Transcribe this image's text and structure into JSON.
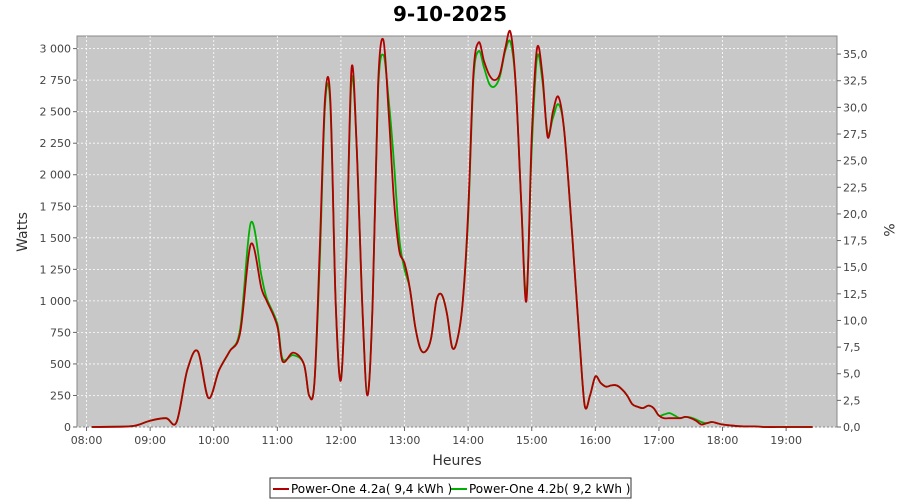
{
  "chart_data": {
    "type": "line",
    "title": "9-10-2025",
    "xlabel": "Heures",
    "ylabel": "Watts",
    "y2label": "%",
    "x_ticks": [
      "08:00",
      "09:00",
      "10:00",
      "11:00",
      "12:00",
      "13:00",
      "14:00",
      "15:00",
      "16:00",
      "17:00",
      "18:00",
      "19:00"
    ],
    "xlim_hours": [
      7.85,
      19.8
    ],
    "ylim": [
      0,
      3100
    ],
    "y_ticks": [
      "0",
      "250",
      "500",
      "750",
      "1 000",
      "1 250",
      "1 500",
      "1 750",
      "2 000",
      "2 250",
      "2 500",
      "2 750",
      "3 000"
    ],
    "y2lim": [
      0,
      36.7
    ],
    "y2_ticks": [
      "0,0",
      "2,5",
      "5,0",
      "7,5",
      "10,0",
      "12,5",
      "15,0",
      "17,5",
      "20,0",
      "22,5",
      "25,0",
      "27,5",
      "30,0",
      "32,5",
      "35,0"
    ],
    "grid": true,
    "background": "#c8c8c8",
    "legend_position": "bottom",
    "series": [
      {
        "name": "Power-One 4.2a( 9,4 kWh )",
        "color": "#b00000",
        "x": [
          "08:05",
          "08:40",
          "08:50",
          "09:00",
          "09:15",
          "09:25",
          "09:35",
          "09:45",
          "09:55",
          "10:05",
          "10:15",
          "10:25",
          "10:35",
          "10:45",
          "10:50",
          "11:00",
          "11:05",
          "11:15",
          "11:25",
          "11:30",
          "11:35",
          "11:40",
          "11:45",
          "11:50",
          "11:55",
          "12:00",
          "12:05",
          "12:10",
          "12:15",
          "12:20",
          "12:25",
          "12:30",
          "12:35",
          "12:40",
          "12:45",
          "12:50",
          "12:55",
          "13:00",
          "13:05",
          "13:10",
          "13:15",
          "13:20",
          "13:25",
          "13:30",
          "13:35",
          "13:40",
          "13:45",
          "13:50",
          "13:55",
          "14:00",
          "14:05",
          "14:10",
          "14:15",
          "14:20",
          "14:25",
          "14:30",
          "14:35",
          "14:40",
          "14:45",
          "14:50",
          "14:55",
          "15:00",
          "15:05",
          "15:10",
          "15:15",
          "15:20",
          "15:25",
          "15:30",
          "15:35",
          "15:40",
          "15:45",
          "15:50",
          "15:55",
          "16:00",
          "16:05",
          "16:10",
          "16:15",
          "16:20",
          "16:25",
          "16:30",
          "16:35",
          "16:40",
          "16:45",
          "16:50",
          "16:55",
          "17:00",
          "17:05",
          "17:10",
          "17:15",
          "17:20",
          "17:25",
          "17:30",
          "17:35",
          "17:40",
          "17:45",
          "17:50",
          "17:55",
          "18:00",
          "18:10",
          "18:20",
          "18:30",
          "18:40",
          "19:00",
          "19:25"
        ],
        "values": [
          0,
          5,
          20,
          50,
          70,
          40,
          450,
          600,
          230,
          450,
          600,
          750,
          1450,
          1100,
          1000,
          800,
          520,
          590,
          500,
          250,
          350,
          1400,
          2600,
          2600,
          1000,
          370,
          1300,
          2840,
          2200,
          1000,
          250,
          1000,
          2700,
          3070,
          2500,
          1800,
          1400,
          1300,
          1100,
          800,
          620,
          600,
          700,
          1000,
          1050,
          900,
          630,
          700,
          1000,
          1700,
          2800,
          3050,
          2900,
          2790,
          2750,
          2800,
          3000,
          3130,
          2700,
          1800,
          1000,
          2300,
          3000,
          2800,
          2300,
          2500,
          2620,
          2400,
          1900,
          1300,
          700,
          170,
          250,
          400,
          350,
          320,
          330,
          330,
          300,
          250,
          180,
          160,
          150,
          170,
          150,
          90,
          70,
          70,
          70,
          70,
          80,
          70,
          50,
          20,
          30,
          40,
          30,
          20,
          10,
          5,
          5,
          0,
          0,
          0
        ]
      },
      {
        "name": "Power-One 4.2b( 9,2 kWh )",
        "color": "#00b000",
        "x": [
          "08:05",
          "08:40",
          "08:50",
          "09:00",
          "09:15",
          "09:25",
          "09:35",
          "09:45",
          "09:55",
          "10:05",
          "10:15",
          "10:25",
          "10:35",
          "10:45",
          "10:50",
          "11:00",
          "11:05",
          "11:15",
          "11:25",
          "11:30",
          "11:35",
          "11:40",
          "11:45",
          "11:50",
          "11:55",
          "12:00",
          "12:05",
          "12:10",
          "12:15",
          "12:20",
          "12:25",
          "12:30",
          "12:35",
          "12:40",
          "12:45",
          "12:50",
          "12:55",
          "13:00",
          "13:05",
          "13:10",
          "13:15",
          "13:20",
          "13:25",
          "13:30",
          "13:35",
          "13:40",
          "13:45",
          "13:50",
          "13:55",
          "14:00",
          "14:05",
          "14:10",
          "14:15",
          "14:20",
          "14:25",
          "14:30",
          "14:35",
          "14:40",
          "14:45",
          "14:50",
          "14:55",
          "15:00",
          "15:05",
          "15:10",
          "15:15",
          "15:20",
          "15:25",
          "15:30",
          "15:35",
          "15:40",
          "15:45",
          "15:50",
          "15:55",
          "16:00",
          "16:05",
          "16:10",
          "16:15",
          "16:20",
          "16:25",
          "16:30",
          "16:35",
          "16:40",
          "16:45",
          "16:50",
          "16:55",
          "17:00",
          "17:05",
          "17:10",
          "17:15",
          "17:20",
          "17:25",
          "17:30",
          "17:35",
          "17:40",
          "17:45",
          "17:50",
          "17:55",
          "18:00",
          "18:10",
          "18:20",
          "18:30",
          "18:40",
          "19:00",
          "19:25"
        ],
        "values": [
          0,
          5,
          20,
          50,
          70,
          40,
          450,
          600,
          230,
          450,
          600,
          780,
          1620,
          1200,
          1020,
          820,
          540,
          570,
          500,
          250,
          350,
          1300,
          2550,
          2550,
          1000,
          380,
          1300,
          2750,
          2200,
          1000,
          260,
          1000,
          2650,
          2950,
          2600,
          2100,
          1500,
          1250,
          1100,
          800,
          620,
          600,
          700,
          1000,
          1050,
          900,
          630,
          700,
          1000,
          1650,
          2750,
          2980,
          2850,
          2720,
          2700,
          2780,
          2980,
          3050,
          2700,
          1800,
          1050,
          2200,
          2930,
          2750,
          2330,
          2450,
          2560,
          2400,
          1900,
          1300,
          700,
          170,
          250,
          400,
          350,
          320,
          330,
          330,
          300,
          250,
          180,
          160,
          150,
          170,
          150,
          90,
          100,
          110,
          90,
          70,
          80,
          75,
          60,
          40,
          30,
          40,
          30,
          20,
          10,
          5,
          5,
          0,
          0,
          0
        ]
      }
    ]
  }
}
